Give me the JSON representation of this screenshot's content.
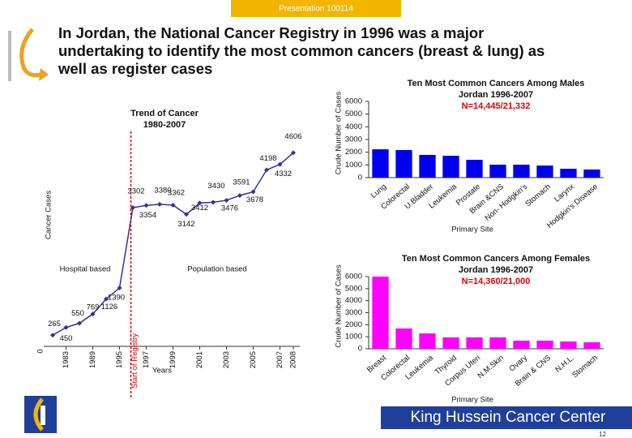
{
  "header": "Presentation 100114",
  "title": [
    "In Jordan, the National Cancer Registry in 1996 was a major",
    "undertaking to identify the most common cancers (breast & lung) as",
    "well as register cases"
  ],
  "footer": "King Hussein Cancer Center",
  "page_number": "12",
  "chart_data": [
    {
      "type": "line",
      "title": [
        "Trend of Cancer",
        "1980-2007"
      ],
      "categories": [
        null,
        "1983",
        null,
        "1989",
        null,
        "1995",
        null,
        "1997",
        null,
        "1999",
        null,
        "2001",
        null,
        "2003",
        null,
        "2005",
        null,
        "2007",
        "2008"
      ],
      "values": [
        265,
        450,
        550,
        769,
        1126,
        1390,
        3302,
        3354,
        3380,
        3362,
        3142,
        3412,
        3430,
        3476,
        3591,
        3678,
        4198,
        4332,
        4606
      ],
      "color": "#333399",
      "ylim": [
        0,
        5000
      ],
      "yticks": [
        0
      ],
      "x_label": "Years",
      "y_label": "Cancer Cases",
      "annotations": [
        "Hospital based",
        "Population based",
        "Start of Registry"
      ]
    },
    {
      "type": "bar",
      "title": [
        "Ten Most Common Cancers Among Males",
        "Jordan 1996-2007"
      ],
      "subtitle": "N=14,445/21,332",
      "categories": [
        "Lung",
        "Colorectal",
        "U.Bladder",
        "Leukemia",
        "Prostate",
        "Brain &CNS",
        "Non- Hodgkin's",
        "Stomach",
        "Larynx",
        "Hodgkin's Disease"
      ],
      "values": [
        2230,
        2170,
        1790,
        1720,
        1400,
        1020,
        1020,
        950,
        700,
        640
      ],
      "color": "#0000ee",
      "ylim": [
        0,
        6000
      ],
      "yticks": [
        0,
        1000,
        2000,
        3000,
        4000,
        5000,
        6000
      ],
      "grid": false,
      "x_label": "Primary Site",
      "y_label": "Crude Number of Cases"
    },
    {
      "type": "bar",
      "title": [
        "Ten Most Common Cancers Among Females",
        "Jordan 1996-2007"
      ],
      "subtitle": "N=14,360/21,000",
      "categories": [
        "Breast",
        "Colorectal",
        "Leukemia",
        "Thyroid",
        "Corpus Uteri",
        "N.M.Skin",
        "Ovary",
        "Brain & CNS",
        "N.H.L.",
        "Stomach"
      ],
      "values": [
        6000,
        1690,
        1280,
        950,
        950,
        950,
        680,
        680,
        610,
        540
      ],
      "color": "#ff00ff",
      "ylim": [
        0,
        6000
      ],
      "yticks": [
        0,
        1000,
        2000,
        3000,
        4000,
        5000,
        6000
      ],
      "grid": false,
      "x_label": "Primary Site",
      "y_label": "Crude Number of Cases"
    }
  ]
}
